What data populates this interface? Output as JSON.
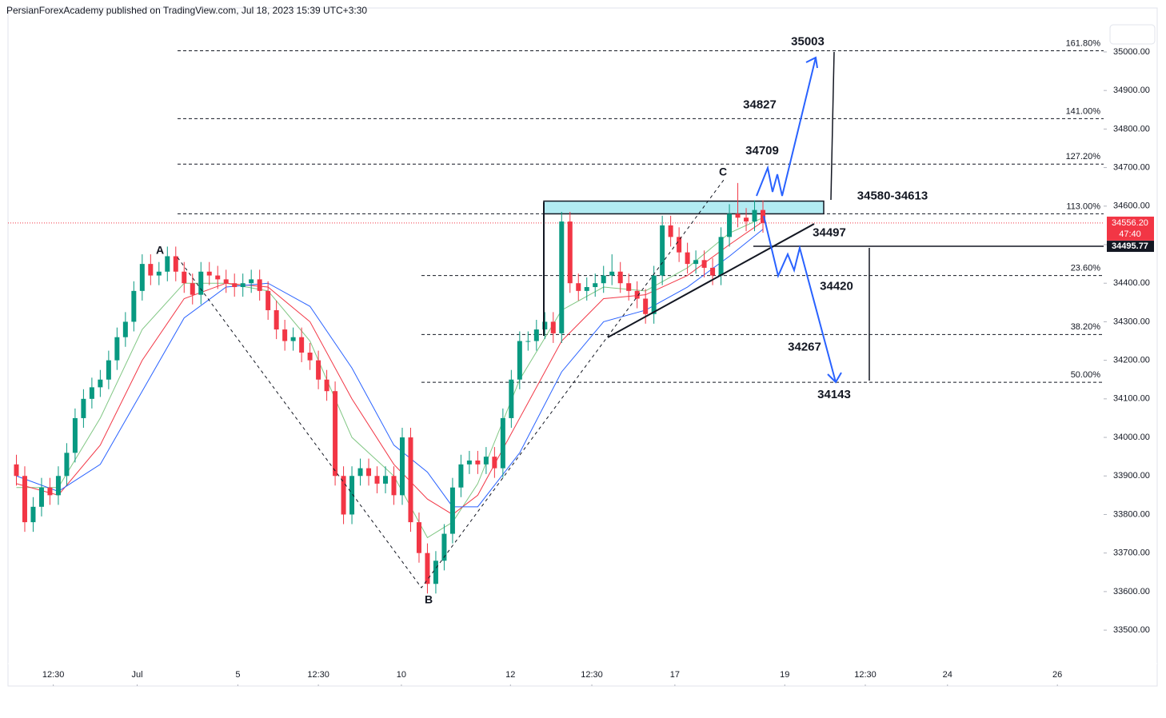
{
  "header": {
    "text": "PersianForexAcademy published on TradingView.com, Jul 18, 2023 15:39 UTC+3:30"
  },
  "chart_data": {
    "type": "candlestick",
    "xlim": [
      -1,
      136
    ],
    "ylim": [
      33355,
      35114
    ],
    "xticks": [
      {
        "value": 4.4,
        "label": "12:30"
      },
      {
        "value": 14.4,
        "label": "Jul"
      },
      {
        "value": 26.4,
        "label": "5"
      },
      {
        "value": 36,
        "label": "12:30"
      },
      {
        "value": 45.9,
        "label": "10"
      },
      {
        "value": 58.9,
        "label": "12"
      },
      {
        "value": 68.6,
        "label": "12:30"
      },
      {
        "value": 78.5,
        "label": "17"
      },
      {
        "value": 91.6,
        "label": "19"
      },
      {
        "value": 101.2,
        "label": "12:30"
      },
      {
        "value": 111,
        "label": "24"
      },
      {
        "value": 124.1,
        "label": "26"
      }
    ],
    "yticks": [
      {
        "value": 35000,
        "label": "35000.00"
      },
      {
        "value": 34900,
        "label": "34900.00"
      },
      {
        "value": 34800,
        "label": "34800.00"
      },
      {
        "value": 34700,
        "label": "34700.00"
      },
      {
        "value": 34600,
        "label": "34600.00"
      },
      {
        "value": 34500,
        "label": "34500.00"
      },
      {
        "value": 34400,
        "label": "34400.00"
      },
      {
        "value": 34300,
        "label": "34300.00"
      },
      {
        "value": 34200,
        "label": "34200.00"
      },
      {
        "value": 34100,
        "label": "34100.00"
      },
      {
        "value": 34000,
        "label": "34000.00"
      },
      {
        "value": 33900,
        "label": "33900.00"
      },
      {
        "value": 33800,
        "label": "33800.00"
      },
      {
        "value": 33700,
        "label": "33700.00"
      },
      {
        "value": 33600,
        "label": "33600.00"
      },
      {
        "value": 33500,
        "label": "33500.00"
      }
    ],
    "up_color": "#089981",
    "down_color": "#f23645",
    "candles": [
      [
        33930,
        33955,
        33875,
        33900
      ],
      [
        33900,
        33925,
        33755,
        33780
      ],
      [
        33780,
        33845,
        33755,
        33820
      ],
      [
        33820,
        33895,
        33795,
        33870
      ],
      [
        33870,
        33895,
        33825,
        33850
      ],
      [
        33850,
        33925,
        33825,
        33900
      ],
      [
        33900,
        33985,
        33875,
        33960
      ],
      [
        33960,
        34075,
        33935,
        34050
      ],
      [
        34050,
        34125,
        34025,
        34100
      ],
      [
        34100,
        34155,
        34075,
        34130
      ],
      [
        34130,
        34175,
        34105,
        34150
      ],
      [
        34150,
        34225,
        34125,
        34200
      ],
      [
        34200,
        34285,
        34175,
        34260
      ],
      [
        34260,
        34325,
        34235,
        34300
      ],
      [
        34300,
        34405,
        34275,
        34380
      ],
      [
        34380,
        34475,
        34355,
        34450
      ],
      [
        34450,
        34475,
        34395,
        34420
      ],
      [
        34420,
        34455,
        34395,
        34430
      ],
      [
        34430,
        34495,
        34405,
        34470
      ],
      [
        34470,
        34495,
        34405,
        34430
      ],
      [
        34430,
        34455,
        34375,
        34400
      ],
      [
        34400,
        34425,
        34345,
        34370
      ],
      [
        34370,
        34455,
        34345,
        34430
      ],
      [
        34430,
        34455,
        34395,
        34420
      ],
      [
        34420,
        34445,
        34385,
        34410
      ],
      [
        34410,
        34435,
        34375,
        34400
      ],
      [
        34400,
        34425,
        34365,
        34390
      ],
      [
        34390,
        34425,
        34365,
        34400
      ],
      [
        34400,
        34435,
        34375,
        34410
      ],
      [
        34410,
        34435,
        34355,
        34380
      ],
      [
        34380,
        34405,
        34305,
        34330
      ],
      [
        34330,
        34355,
        34255,
        34280
      ],
      [
        34280,
        34305,
        34225,
        34250
      ],
      [
        34250,
        34285,
        34225,
        34260
      ],
      [
        34260,
        34285,
        34195,
        34220
      ],
      [
        34220,
        34245,
        34175,
        34200
      ],
      [
        34200,
        34225,
        34125,
        34150
      ],
      [
        34150,
        34175,
        34095,
        34120
      ],
      [
        34120,
        34145,
        33875,
        33900
      ],
      [
        33900,
        33925,
        33775,
        33800
      ],
      [
        33800,
        33925,
        33775,
        33900
      ],
      [
        33900,
        33945,
        33875,
        33920
      ],
      [
        33920,
        33945,
        33875,
        33900
      ],
      [
        33900,
        33925,
        33855,
        33880
      ],
      [
        33880,
        33925,
        33855,
        33900
      ],
      [
        33900,
        33925,
        33825,
        33850
      ],
      [
        33850,
        34025,
        33825,
        34000
      ],
      [
        34000,
        34025,
        33755,
        33780
      ],
      [
        33780,
        33805,
        33675,
        33700
      ],
      [
        33700,
        33725,
        33595,
        33620
      ],
      [
        33620,
        33705,
        33595,
        33680
      ],
      [
        33680,
        33775,
        33655,
        33750
      ],
      [
        33750,
        33895,
        33725,
        33870
      ],
      [
        33870,
        33955,
        33845,
        33930
      ],
      [
        33930,
        33965,
        33905,
        33940
      ],
      [
        33940,
        33965,
        33905,
        33930
      ],
      [
        33930,
        33975,
        33905,
        33950
      ],
      [
        33950,
        33975,
        33895,
        33920
      ],
      [
        33920,
        34075,
        33895,
        34050
      ],
      [
        34050,
        34175,
        34025,
        34150
      ],
      [
        34150,
        34275,
        34125,
        34250
      ],
      [
        34250,
        34275,
        34225,
        34250
      ],
      [
        34250,
        34305,
        34225,
        34280
      ],
      [
        34280,
        34325,
        34255,
        34300
      ],
      [
        34300,
        34325,
        34245,
        34270
      ],
      [
        34270,
        34585,
        34245,
        34560
      ],
      [
        34560,
        34585,
        34375,
        34400
      ],
      [
        34400,
        34425,
        34355,
        34380
      ],
      [
        34380,
        34415,
        34355,
        34390
      ],
      [
        34390,
        34425,
        34365,
        34400
      ],
      [
        34400,
        34445,
        34375,
        34420
      ],
      [
        34420,
        34475,
        34395,
        34430
      ],
      [
        34430,
        34455,
        34375,
        34400
      ],
      [
        34400,
        34425,
        34355,
        34380
      ],
      [
        34380,
        34405,
        34335,
        34360
      ],
      [
        34360,
        34385,
        34295,
        34320
      ],
      [
        34320,
        34445,
        34295,
        34420
      ],
      [
        34420,
        34575,
        34395,
        34550
      ],
      [
        34550,
        34575,
        34495,
        34520
      ],
      [
        34520,
        34545,
        34455,
        34480
      ],
      [
        34480,
        34505,
        34425,
        34450
      ],
      [
        34450,
        34485,
        34425,
        34460
      ],
      [
        34460,
        34485,
        34415,
        34440
      ],
      [
        34440,
        34465,
        34395,
        34420
      ],
      [
        34420,
        34545,
        34395,
        34520
      ],
      [
        34520,
        34605,
        34495,
        34580
      ],
      [
        34580,
        34660,
        34545,
        34570
      ],
      [
        34570,
        34595,
        34535,
        34560
      ],
      [
        34560,
        34615,
        34535,
        34590
      ],
      [
        34590,
        34615,
        34531,
        34556.2
      ]
    ],
    "moving_averages": [
      {
        "color": "#81c784",
        "x": [
          0,
          5,
          10,
          15,
          20,
          25,
          30,
          35,
          40,
          45,
          49,
          52,
          55,
          60,
          65,
          70,
          75,
          80,
          85,
          89
        ],
        "values": [
          33870,
          33870,
          34050,
          34280,
          34400,
          34400,
          34380,
          34250,
          34000,
          33900,
          33740,
          33780,
          33880,
          34150,
          34330,
          34390,
          34380,
          34440,
          34530,
          34570
        ]
      },
      {
        "color": "#f23645",
        "x": [
          0,
          5,
          10,
          15,
          20,
          25,
          30,
          35,
          40,
          45,
          49,
          52,
          55,
          60,
          65,
          70,
          75,
          80,
          85,
          89
        ],
        "values": [
          33880,
          33850,
          33980,
          34200,
          34360,
          34400,
          34390,
          34300,
          34100,
          33930,
          33840,
          33800,
          33850,
          34050,
          34250,
          34360,
          34370,
          34420,
          34500,
          34560
        ]
      },
      {
        "color": "#2962ff",
        "x": [
          0,
          5,
          10,
          15,
          20,
          25,
          30,
          35,
          40,
          45,
          49,
          52,
          55,
          60,
          65,
          70,
          75,
          80,
          85,
          89
        ],
        "values": [
          33900,
          33860,
          33930,
          34120,
          34310,
          34390,
          34400,
          34340,
          34180,
          33980,
          33910,
          33820,
          33820,
          33960,
          34170,
          34300,
          34330,
          34390,
          34470,
          34540
        ]
      }
    ],
    "fib_levels": [
      {
        "ratio": "161.80%",
        "price": 35003
      },
      {
        "ratio": "141.00%",
        "price": 34827
      },
      {
        "ratio": "127.20%",
        "price": 34709
      },
      {
        "ratio": "113.00%",
        "price": 34580
      },
      {
        "ratio": "23.60%",
        "price": 34420
      },
      {
        "ratio": "38.20%",
        "price": 34267
      },
      {
        "ratio": "50.00%",
        "price": 34143
      }
    ],
    "zone": {
      "label": "34580-34613",
      "low": 34580,
      "high": 34613
    },
    "support": {
      "price": 34497
    },
    "waves": [
      {
        "label": "A"
      },
      {
        "label": "B"
      },
      {
        "label": "C"
      }
    ],
    "last_price": {
      "value": 34556.2,
      "label": "34556.20",
      "countdown": "47:40"
    },
    "line_price": {
      "value": 34495.77,
      "label": "34495.77"
    }
  }
}
